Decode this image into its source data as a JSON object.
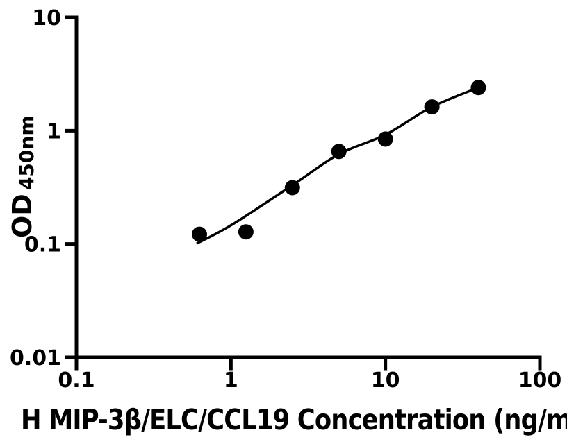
{
  "figure": {
    "background_color": "#ffffff",
    "foreground_color": "#000000"
  },
  "chart_data": {
    "type": "scatter",
    "title": "",
    "xlabel_visible": "H MIP-3β/ELC/CCL19 Concentration (ng/m",
    "ylabel_main": "OD",
    "ylabel_sub": "450nm",
    "x_scale": "log",
    "y_scale": "log",
    "xlim": [
      0.1,
      100
    ],
    "ylim": [
      0.01,
      10
    ],
    "x_ticks": [
      {
        "value": 0.1,
        "label": "0.1"
      },
      {
        "value": 1,
        "label": "1"
      },
      {
        "value": 10,
        "label": "10"
      },
      {
        "value": 100,
        "label": "100"
      }
    ],
    "y_ticks": [
      {
        "value": 0.01,
        "label": "0.01"
      },
      {
        "value": 0.1,
        "label": "0.1"
      },
      {
        "value": 1,
        "label": "1"
      },
      {
        "value": 10,
        "label": "10"
      }
    ],
    "grid": false,
    "legend": false,
    "series": [
      {
        "name": "standard-curve-points",
        "marker": "filled-circle",
        "marker_color": "#000000",
        "x": [
          0.625,
          1.25,
          2.5,
          5,
          10,
          20,
          40
        ],
        "y": [
          0.122,
          0.128,
          0.314,
          0.655,
          0.844,
          1.62,
          2.4
        ]
      }
    ],
    "fit_curve": {
      "name": "fitted-standard-curve",
      "color": "#000000",
      "points": [
        [
          0.6,
          0.101
        ],
        [
          1.0,
          0.146
        ],
        [
          2.5,
          0.33
        ],
        [
          5.0,
          0.62
        ],
        [
          10,
          0.92
        ],
        [
          20,
          1.62
        ],
        [
          40,
          2.4
        ]
      ]
    }
  }
}
